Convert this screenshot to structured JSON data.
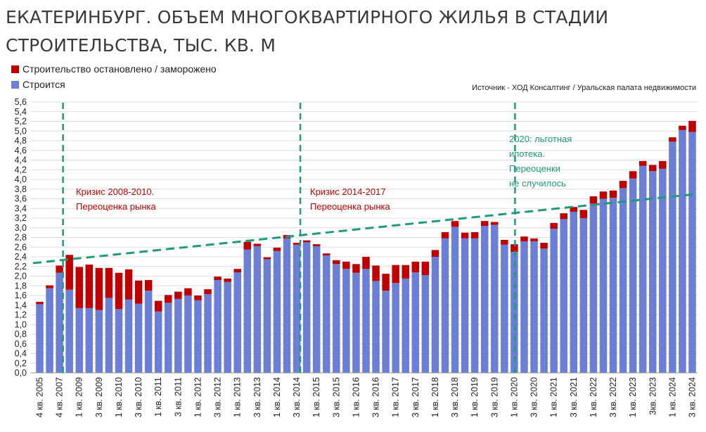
{
  "title_line1": "ЕКАТЕРИНБУРГ. ОБЪЕМ МНОГОКВАРТИРНОГО ЖИЛЬЯ В СТАДИИ",
  "title_line2": "СТРОИТЕЛЬСТВА, ТЫС. КВ. М",
  "source": "Источник - ХОД Консалтинг / Уральская палата недвижимости",
  "colors": {
    "building": "#6b7fd7",
    "stopped": "#c00000",
    "trend": "#1f9a7a",
    "grid": "#dddddd"
  },
  "chart_data": {
    "type": "bar",
    "stacked": true,
    "ylim": [
      0,
      5.6
    ],
    "yticks": [
      "0,0",
      "0,2",
      "0,4",
      "0,6",
      "0,8",
      "1,0",
      "1,2",
      "1,4",
      "1,6",
      "1,8",
      "2,0",
      "2,2",
      "2,4",
      "2,6",
      "2,8",
      "3,0",
      "3,2",
      "3,4",
      "3,6",
      "3,8",
      "4,0",
      "4,2",
      "4,4",
      "4,6",
      "4,8",
      "5,0",
      "5,2",
      "5,4",
      "5,6"
    ],
    "xtick_labels": [
      "4 кв. 2005",
      "4 кв. 2007",
      "1 кв. 2009",
      "3 кв. 2009",
      "1 кв. 2010",
      "3 кв. 2010",
      "1 кв. 2011",
      "3 кв. 2011",
      "1 кв. 2012",
      "3 кв. 2012",
      "1 кв. 2013",
      "3 кв. 2013",
      "1 кв. 2014",
      "3 кв. 2014",
      "1 кв. 2015",
      "3 кв. 2015",
      "1 кв. 2016",
      "3 кв. 2016",
      "1 кв. 2017",
      "3 кв. 2017",
      "1 кв. 2018",
      "3 кв. 2018",
      "1 кв. 2019",
      "3 кв. 2019",
      "1 кв. 2020",
      "3 кв. 2020",
      "1 кв. 2021",
      "3 кв. 2021",
      "1 кв. 2022",
      "3 кв. 2022",
      "1 кв. 2023",
      "3кв. 2023",
      "1 кв. 2024",
      "3 кв. 2024"
    ],
    "series": [
      {
        "name": "Строится",
        "values": [
          1.42,
          1.75,
          2.07,
          1.72,
          1.34,
          1.34,
          1.3,
          1.55,
          1.32,
          1.52,
          1.43,
          1.7,
          1.27,
          1.45,
          1.53,
          1.6,
          1.5,
          1.63,
          1.92,
          1.88,
          2.08,
          2.55,
          2.62,
          2.35,
          2.52,
          2.78,
          2.65,
          2.7,
          2.62,
          2.43,
          2.25,
          2.15,
          2.07,
          2.15,
          1.9,
          1.7,
          1.86,
          1.95,
          2.08,
          2.02,
          2.4,
          2.78,
          3.02,
          2.78,
          2.78,
          3.04,
          3.06,
          2.65,
          2.5,
          2.72,
          2.72,
          2.57,
          2.98,
          3.18,
          3.33,
          3.2,
          3.5,
          3.6,
          3.62,
          3.82,
          4.02,
          4.28,
          4.17,
          4.22,
          4.78,
          5.02,
          4.98
        ]
      },
      {
        "name": "Строительство остановлено / заморожено",
        "values": [
          0.05,
          0.06,
          0.15,
          0.72,
          0.85,
          0.9,
          0.87,
          0.62,
          0.75,
          0.62,
          0.48,
          0.22,
          0.22,
          0.16,
          0.15,
          0.15,
          0.1,
          0.1,
          0.07,
          0.07,
          0.07,
          0.16,
          0.05,
          0.04,
          0.07,
          0.07,
          0.04,
          0.04,
          0.04,
          0.04,
          0.08,
          0.15,
          0.18,
          0.25,
          0.32,
          0.35,
          0.37,
          0.28,
          0.22,
          0.28,
          0.14,
          0.13,
          0.12,
          0.12,
          0.13,
          0.1,
          0.06,
          0.1,
          0.16,
          0.1,
          0.06,
          0.12,
          0.12,
          0.12,
          0.1,
          0.17,
          0.15,
          0.15,
          0.15,
          0.15,
          0.15,
          0.1,
          0.13,
          0.16,
          0.09,
          0.09,
          0.23
        ]
      }
    ],
    "legend": [
      "Строительство остановлено / заморожено",
      "Строится"
    ],
    "annotations": [
      {
        "text_lines": [
          "Кризис 2008-2010.",
          "Переоценка рынка"
        ],
        "color": "#c00000"
      },
      {
        "text_lines": [
          "Кризис 2014-2017",
          "Переоценка рынка"
        ],
        "color": "#c00000"
      },
      {
        "text_lines": [
          "2020: льготная",
          "ипотека.",
          "Переоценки",
          "не случилось"
        ],
        "color": "#1f9a7a"
      }
    ],
    "vlines_at_category": [
      "4 кв. 2007",
      "3 кв. 2014",
      "1 кв. 2020"
    ],
    "trend_line": {
      "start_value": 2.27,
      "end_value": 3.7
    }
  }
}
